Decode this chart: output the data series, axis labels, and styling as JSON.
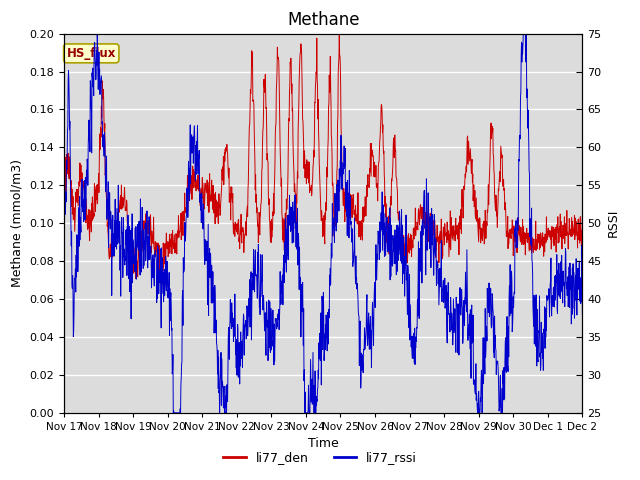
{
  "title": "Methane",
  "xlabel": "Time",
  "ylabel_left": "Methane (mmol/m3)",
  "ylabel_right": "RSSI",
  "ylim_left": [
    0.0,
    0.2
  ],
  "ylim_right": [
    25,
    75
  ],
  "yticks_left": [
    0.0,
    0.02,
    0.04,
    0.06,
    0.08,
    0.1,
    0.12,
    0.14,
    0.16,
    0.18,
    0.2
  ],
  "yticks_right": [
    25,
    30,
    35,
    40,
    45,
    50,
    55,
    60,
    65,
    70,
    75
  ],
  "xtick_labels": [
    "Nov 17",
    "Nov 18",
    "Nov 19",
    "Nov 20",
    "Nov 21",
    "Nov 22",
    "Nov 23",
    "Nov 24",
    "Nov 25",
    "Nov 26",
    "Nov 27",
    "Nov 28",
    "Nov 29",
    "Nov 30",
    "Dec 1",
    "Dec 2"
  ],
  "color_red": "#cc0000",
  "color_blue": "#0000cc",
  "legend_label_red": "li77_den",
  "legend_label_blue": "li77_rssi",
  "box_label": "HS_flux",
  "box_facecolor": "#ffffcc",
  "box_edgecolor": "#aaa000",
  "plot_bg": "#dcdcdc",
  "fig_bg": "#ffffff",
  "grid_color": "#ffffff",
  "title_fontsize": 12,
  "axis_label_fontsize": 9,
  "tick_fontsize": 8
}
